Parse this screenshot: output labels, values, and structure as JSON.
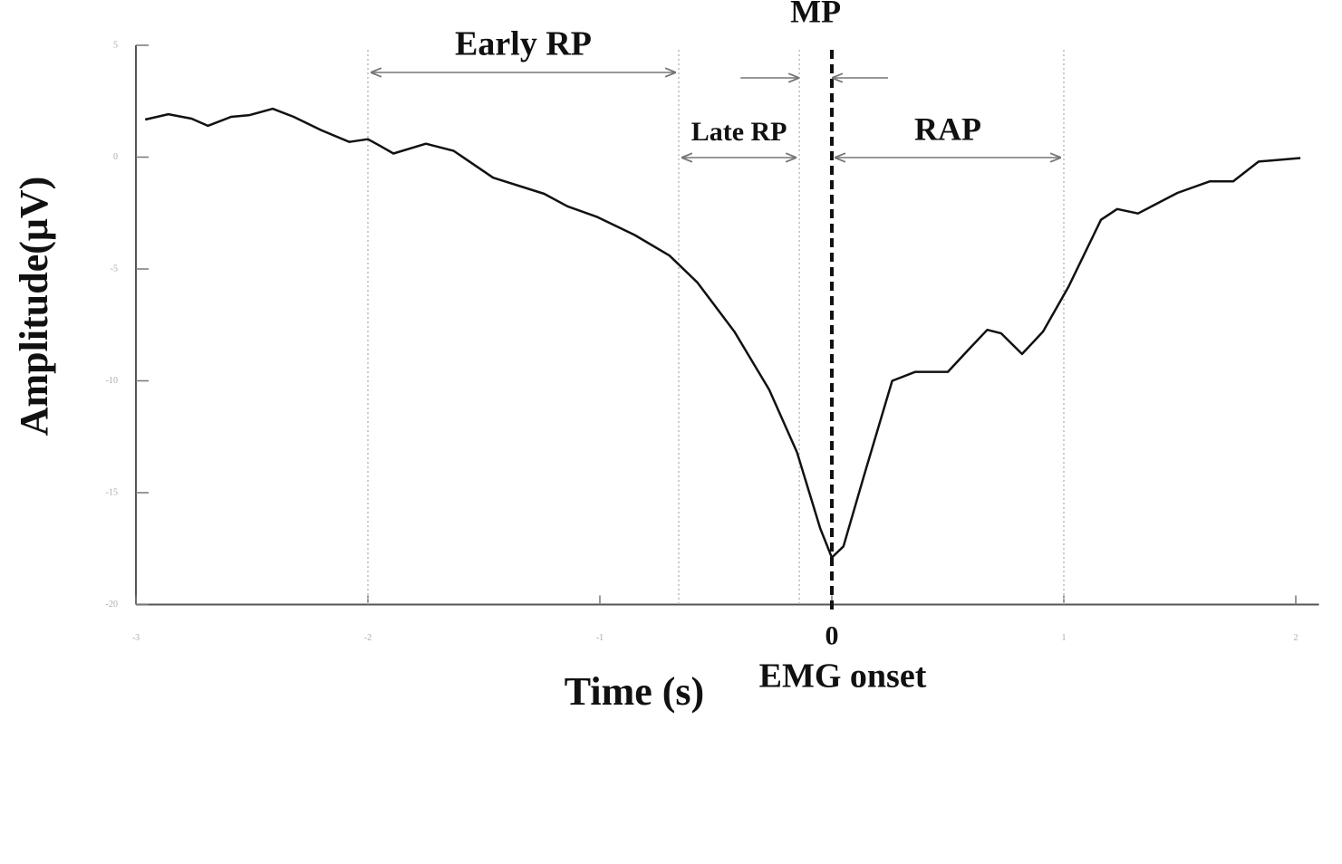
{
  "chart_data": {
    "type": "line",
    "x_label": "Time (s)",
    "y_label": "Amplitude(μV)",
    "onset_label": "EMG onset",
    "xlim": [
      -3,
      2.1
    ],
    "xticks": [
      -3,
      -2,
      -1,
      0,
      1,
      2
    ],
    "ylim": [
      -20,
      5
    ],
    "yticks": [
      5,
      0,
      -5,
      -10,
      -15,
      -20
    ],
    "onset": 0,
    "reference_lines": [
      -2,
      -0.66,
      -0.14,
      1
    ],
    "annotations": [
      {
        "text": "Early RP",
        "start": -2,
        "end": -0.66
      },
      {
        "text": "Late RP",
        "start": -0.66,
        "end": -0.14
      },
      {
        "text": "MP",
        "start": -0.14,
        "end": 0
      },
      {
        "text": "RAP",
        "start": 0,
        "end": 1
      }
    ],
    "series": [
      {
        "color": "#111111",
        "x": [
          -2.96,
          -2.86,
          -2.76,
          -2.69,
          -2.59,
          -2.51,
          -2.41,
          -2.32,
          -2.2,
          -2.08,
          -2.0,
          -1.95,
          -1.89,
          -1.75,
          -1.63,
          -1.46,
          -1.24,
          -1.14,
          -1.01,
          -0.85,
          -0.7,
          -0.58,
          -0.42,
          -0.27,
          -0.15,
          -0.05,
          0,
          0.05,
          0.14,
          0.26,
          0.36,
          0.5,
          0.59,
          0.67,
          0.73,
          0.82,
          0.91,
          1.02,
          1.16,
          1.23,
          1.32,
          1.49,
          1.63,
          1.73,
          1.84,
          2.02
        ],
        "values": [
          1.68,
          1.92,
          1.72,
          1.4,
          1.8,
          1.88,
          2.16,
          1.8,
          1.2,
          0.68,
          0.8,
          0.52,
          0.16,
          0.6,
          0.28,
          -0.92,
          -1.64,
          -2.2,
          -2.68,
          -3.48,
          -4.4,
          -5.6,
          -7.8,
          -10.4,
          -13.2,
          -16.6,
          -17.9,
          -17.4,
          -14.2,
          -10,
          -9.6,
          -9.6,
          -8.6,
          -7.72,
          -7.88,
          -8.8,
          -7.8,
          -5.8,
          -2.8,
          -2.32,
          -2.52,
          -1.6,
          -1.08,
          -1.08,
          -0.2,
          -0.04
        ]
      }
    ]
  }
}
